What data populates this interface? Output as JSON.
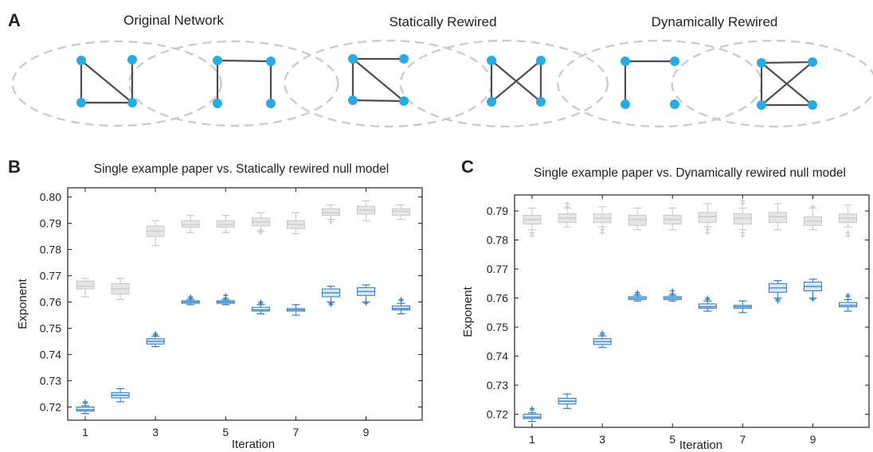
{
  "panel_letters": {
    "a": "A",
    "b": "B",
    "c": "C"
  },
  "networks": [
    {
      "title": "Original Network",
      "left_edges": [
        [
          0,
          2
        ],
        [
          0,
          3
        ],
        [
          2,
          3
        ],
        [
          1,
          3
        ]
      ],
      "right_edges": [
        [
          0,
          1
        ],
        [
          0,
          2
        ],
        [
          1,
          3
        ]
      ]
    },
    {
      "title": "Statically Rewired",
      "left_edges": [
        [
          0,
          1
        ],
        [
          0,
          2
        ],
        [
          0,
          3
        ],
        [
          2,
          3
        ]
      ],
      "right_edges": [
        [
          0,
          3
        ],
        [
          1,
          2
        ],
        [
          0,
          2
        ],
        [
          1,
          3
        ]
      ]
    },
    {
      "title": "Dynamically Rewired",
      "left_edges": [
        [
          0,
          1
        ],
        [
          0,
          2
        ]
      ],
      "right_edges": [
        [
          0,
          1
        ],
        [
          0,
          2
        ],
        [
          0,
          3
        ],
        [
          1,
          2
        ],
        [
          2,
          3
        ]
      ]
    }
  ],
  "colors": {
    "node": "#29abe2",
    "edge": "#4d4d4d",
    "ellipse": "#cccccc",
    "null_box": "#c8c8c8",
    "null_fill": "#e6e6e6",
    "paper_box": "#2b7bc0",
    "paper_fill": "#dbe8f4"
  },
  "chart_data": [
    {
      "type": "box",
      "panel": "B",
      "title": "Single example paper vs. Statically rewired null model",
      "xlabel": "Iteration",
      "ylabel": "Exponent",
      "xlim": [
        0.5,
        10.6
      ],
      "ylim": [
        0.715,
        0.8035
      ],
      "xticks": [
        1,
        3,
        5,
        7,
        9
      ],
      "yticks": [
        0.72,
        0.73,
        0.74,
        0.75,
        0.76,
        0.77,
        0.78,
        0.79,
        0.8
      ],
      "ytick_labels": [
        "0.72",
        "0.73",
        "0.74",
        "0.75",
        "0.76",
        "0.77",
        "0.78",
        "0.79",
        "0.80"
      ],
      "series": [
        {
          "role": "null",
          "boxes": [
            {
              "x": 1,
              "wlo": 0.762,
              "q1": 0.765,
              "med": 0.766,
              "q3": 0.768,
              "whi": 0.769,
              "fl": []
            },
            {
              "x": 2,
              "wlo": 0.761,
              "q1": 0.763,
              "med": 0.765,
              "q3": 0.767,
              "whi": 0.769,
              "fl": []
            },
            {
              "x": 3,
              "wlo": 0.7815,
              "q1": 0.785,
              "med": 0.787,
              "q3": 0.789,
              "whi": 0.791,
              "fl": []
            },
            {
              "x": 4,
              "wlo": 0.7865,
              "q1": 0.7885,
              "med": 0.7895,
              "q3": 0.791,
              "whi": 0.793,
              "fl": []
            },
            {
              "x": 5,
              "wlo": 0.7865,
              "q1": 0.7885,
              "med": 0.7895,
              "q3": 0.791,
              "whi": 0.793,
              "fl": []
            },
            {
              "x": 6,
              "wlo": 0.787,
              "q1": 0.789,
              "med": 0.7905,
              "q3": 0.792,
              "whi": 0.794,
              "fl": [
                0.7865,
                0.7875
              ]
            },
            {
              "x": 7,
              "wlo": 0.786,
              "q1": 0.788,
              "med": 0.7895,
              "q3": 0.791,
              "whi": 0.794,
              "fl": []
            },
            {
              "x": 8,
              "wlo": 0.7915,
              "q1": 0.793,
              "med": 0.794,
              "q3": 0.7955,
              "whi": 0.797,
              "fl": [
                0.7905,
                0.7915
              ]
            },
            {
              "x": 9,
              "wlo": 0.791,
              "q1": 0.7935,
              "med": 0.795,
              "q3": 0.7965,
              "whi": 0.7985,
              "fl": []
            },
            {
              "x": 10,
              "wlo": 0.7915,
              "q1": 0.793,
              "med": 0.7945,
              "q3": 0.7955,
              "whi": 0.797,
              "fl": []
            }
          ]
        },
        {
          "role": "paper",
          "boxes": [
            {
              "x": 1,
              "wlo": 0.7175,
              "q1": 0.7185,
              "med": 0.719,
              "q3": 0.72,
              "whi": 0.7205,
              "fl": [
                0.7215,
                0.722
              ]
            },
            {
              "x": 2,
              "wlo": 0.722,
              "q1": 0.7235,
              "med": 0.7245,
              "q3": 0.7255,
              "whi": 0.727,
              "fl": []
            },
            {
              "x": 3,
              "wlo": 0.743,
              "q1": 0.744,
              "med": 0.745,
              "q3": 0.746,
              "whi": 0.747,
              "fl": [
                0.7475,
                0.748
              ]
            },
            {
              "x": 4,
              "wlo": 0.759,
              "q1": 0.7595,
              "med": 0.76,
              "q3": 0.7605,
              "whi": 0.761,
              "fl": [
                0.7615,
                0.762
              ]
            },
            {
              "x": 5,
              "wlo": 0.759,
              "q1": 0.7595,
              "med": 0.76,
              "q3": 0.7605,
              "whi": 0.761,
              "fl": [
                0.7615,
                0.7625
              ]
            },
            {
              "x": 6,
              "wlo": 0.7555,
              "q1": 0.7565,
              "med": 0.757,
              "q3": 0.758,
              "whi": 0.759,
              "fl": [
                0.7595,
                0.76
              ]
            },
            {
              "x": 7,
              "wlo": 0.755,
              "q1": 0.7565,
              "med": 0.757,
              "q3": 0.7575,
              "whi": 0.759,
              "fl": []
            },
            {
              "x": 8,
              "wlo": 0.76,
              "q1": 0.762,
              "med": 0.7635,
              "q3": 0.765,
              "whi": 0.766,
              "fl": [
                0.759,
                0.7595
              ]
            },
            {
              "x": 9,
              "wlo": 0.76,
              "q1": 0.7625,
              "med": 0.764,
              "q3": 0.7655,
              "whi": 0.7665,
              "fl": [
                0.7595,
                0.76
              ]
            },
            {
              "x": 10,
              "wlo": 0.7555,
              "q1": 0.757,
              "med": 0.7575,
              "q3": 0.7585,
              "whi": 0.7595,
              "fl": [
                0.7605,
                0.761
              ]
            }
          ]
        }
      ]
    },
    {
      "type": "box",
      "panel": "C",
      "title": "Single example paper vs. Dynamically rewired null model",
      "xlabel": "Iteration",
      "ylabel": "Exponent",
      "xlim": [
        0.5,
        10.6
      ],
      "ylim": [
        0.7155,
        0.7955
      ],
      "xticks": [
        1,
        3,
        5,
        7,
        9
      ],
      "yticks": [
        0.72,
        0.73,
        0.74,
        0.75,
        0.76,
        0.77,
        0.78,
        0.79
      ],
      "ytick_labels": [
        "0.72",
        "0.73",
        "0.74",
        "0.75",
        "0.76",
        "0.77",
        "0.78",
        "0.79"
      ],
      "series": [
        {
          "role": "null",
          "boxes": [
            {
              "x": 1,
              "wlo": 0.7835,
              "q1": 0.7855,
              "med": 0.787,
              "q3": 0.7885,
              "whi": 0.791,
              "fl": [
                0.7815,
                0.7825
              ]
            },
            {
              "x": 2,
              "wlo": 0.7845,
              "q1": 0.786,
              "med": 0.7875,
              "q3": 0.789,
              "whi": 0.791,
              "fl": [
                0.7915,
                0.7925
              ]
            },
            {
              "x": 3,
              "wlo": 0.7845,
              "q1": 0.786,
              "med": 0.7875,
              "q3": 0.789,
              "whi": 0.7915,
              "fl": [
                0.7825,
                0.7835
              ]
            },
            {
              "x": 4,
              "wlo": 0.7835,
              "q1": 0.785,
              "med": 0.787,
              "q3": 0.7885,
              "whi": 0.791,
              "fl": []
            },
            {
              "x": 5,
              "wlo": 0.7835,
              "q1": 0.7855,
              "med": 0.787,
              "q3": 0.7885,
              "whi": 0.791,
              "fl": []
            },
            {
              "x": 6,
              "wlo": 0.7845,
              "q1": 0.786,
              "med": 0.788,
              "q3": 0.7895,
              "whi": 0.7925,
              "fl": [
                0.7825,
                0.7835
              ]
            },
            {
              "x": 7,
              "wlo": 0.7835,
              "q1": 0.7855,
              "med": 0.7875,
              "q3": 0.789,
              "whi": 0.791,
              "fl": [
                0.7815,
                0.7825,
                0.7925,
                0.7935
              ]
            },
            {
              "x": 8,
              "wlo": 0.7835,
              "q1": 0.786,
              "med": 0.788,
              "q3": 0.7895,
              "whi": 0.7925,
              "fl": []
            },
            {
              "x": 9,
              "wlo": 0.7835,
              "q1": 0.785,
              "med": 0.7865,
              "q3": 0.788,
              "whi": 0.791,
              "fl": [
                0.7915
              ]
            },
            {
              "x": 10,
              "wlo": 0.7845,
              "q1": 0.786,
              "med": 0.7875,
              "q3": 0.789,
              "whi": 0.792,
              "fl": [
                0.7815,
                0.7825
              ]
            }
          ]
        },
        {
          "role": "paper",
          "boxes": [
            {
              "x": 1,
              "wlo": 0.7175,
              "q1": 0.7185,
              "med": 0.719,
              "q3": 0.72,
              "whi": 0.7205,
              "fl": [
                0.7215,
                0.722
              ]
            },
            {
              "x": 2,
              "wlo": 0.722,
              "q1": 0.7235,
              "med": 0.7245,
              "q3": 0.7255,
              "whi": 0.727,
              "fl": []
            },
            {
              "x": 3,
              "wlo": 0.743,
              "q1": 0.744,
              "med": 0.745,
              "q3": 0.746,
              "whi": 0.747,
              "fl": [
                0.7475,
                0.748
              ]
            },
            {
              "x": 4,
              "wlo": 0.759,
              "q1": 0.7595,
              "med": 0.76,
              "q3": 0.7605,
              "whi": 0.761,
              "fl": [
                0.7615,
                0.762
              ]
            },
            {
              "x": 5,
              "wlo": 0.759,
              "q1": 0.7595,
              "med": 0.76,
              "q3": 0.7605,
              "whi": 0.761,
              "fl": [
                0.7615,
                0.7625
              ]
            },
            {
              "x": 6,
              "wlo": 0.7555,
              "q1": 0.7565,
              "med": 0.757,
              "q3": 0.758,
              "whi": 0.759,
              "fl": [
                0.7595,
                0.76
              ]
            },
            {
              "x": 7,
              "wlo": 0.755,
              "q1": 0.7565,
              "med": 0.757,
              "q3": 0.7575,
              "whi": 0.759,
              "fl": []
            },
            {
              "x": 8,
              "wlo": 0.76,
              "q1": 0.762,
              "med": 0.7635,
              "q3": 0.765,
              "whi": 0.766,
              "fl": [
                0.759,
                0.7595
              ]
            },
            {
              "x": 9,
              "wlo": 0.76,
              "q1": 0.7625,
              "med": 0.764,
              "q3": 0.7655,
              "whi": 0.7665,
              "fl": [
                0.7595,
                0.76
              ]
            },
            {
              "x": 10,
              "wlo": 0.7555,
              "q1": 0.757,
              "med": 0.7575,
              "q3": 0.7585,
              "whi": 0.7595,
              "fl": [
                0.7605,
                0.761
              ]
            }
          ]
        }
      ]
    }
  ]
}
